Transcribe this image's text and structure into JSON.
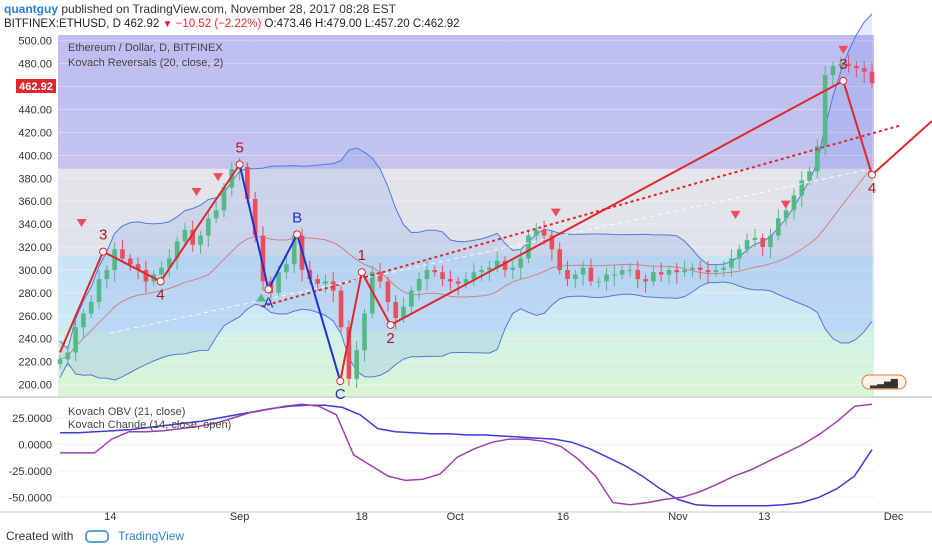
{
  "header": {
    "author": "quantguy",
    "published": "published on TradingView.com, November 28, 2017 08:28 EST",
    "symbol": "BITFINEX:ETHUSD, D",
    "price": "462.92",
    "change": "−10.52 (−2.22%)",
    "ohlc": "O:473.46 H:479.00 L:457.20 C:462.92"
  },
  "legend": {
    "main": "Ethereum / Dollar, D, BITFINEX",
    "ind1": "Kovach Reversals (20, close, 2)",
    "ind2": "Kovach OBV (21, close)",
    "ind3": "Kovach Chande (14, close, open)"
  },
  "colors": {
    "up": "#53b987",
    "down": "#eb4d5c",
    "wave_red": "#e0262b",
    "wave_blue": "#2030d0",
    "band": "#5577dd",
    "obv": "#3b3bd6",
    "chande": "#a03dac"
  },
  "price_axis": {
    "ticks": [
      "500.00",
      "480.00",
      "460.00",
      "440.00",
      "420.00",
      "400.00",
      "380.00",
      "360.00",
      "340.00",
      "320.00",
      "300.00",
      "280.00",
      "260.00",
      "240.00",
      "220.00",
      "200.00"
    ],
    "current": "462.92",
    "ylim": [
      190,
      505
    ]
  },
  "osc_axis": {
    "ticks": [
      "25.0000",
      "0.0000",
      "-25.0000",
      "-50.0000"
    ],
    "ylim": [
      -62,
      42
    ]
  },
  "time_axis": {
    "ticks": [
      "14",
      "Sep",
      "18",
      "Oct",
      "16",
      "Nov",
      "13",
      "Dec"
    ]
  },
  "wave_labels": {
    "red": [
      "3",
      "4",
      "5",
      "1",
      "2",
      "3",
      "4"
    ],
    "blue": [
      "A",
      "B",
      "C"
    ]
  },
  "footer": {
    "created": "Created with",
    "brand": "TradingView"
  },
  "chart_data": {
    "type": "candlestick",
    "x_start": "2017-08-07",
    "x_end": "2017-11-28",
    "close": [
      222,
      228,
      250,
      262,
      272,
      292,
      300,
      318,
      310,
      305,
      300,
      290,
      296,
      302,
      310,
      325,
      335,
      322,
      330,
      345,
      352,
      372,
      388,
      390,
      362,
      330,
      290,
      280,
      298,
      305,
      330,
      300,
      292,
      288,
      290,
      282,
      250,
      205,
      230,
      262,
      298,
      290,
      272,
      258,
      268,
      282,
      292,
      300,
      298,
      292,
      290,
      288,
      292,
      298,
      300,
      302,
      308,
      300,
      302,
      310,
      330,
      335,
      330,
      318,
      300,
      292,
      296,
      302,
      290,
      290,
      296,
      296,
      300,
      300,
      292,
      290,
      298,
      296,
      300,
      298,
      300,
      302,
      300,
      298,
      300,
      302,
      310,
      318,
      326,
      328,
      320,
      330,
      345,
      352,
      365,
      378,
      386,
      408,
      470,
      478,
      480,
      478,
      476,
      473,
      463
    ],
    "wave_points": [
      {
        "label": "3",
        "date": "2017-08-13",
        "value": 316
      },
      {
        "label": "4",
        "date": "2017-08-21",
        "value": 290
      },
      {
        "label": "5",
        "date": "2017-09-01",
        "value": 392
      },
      {
        "label": "A",
        "date": "2017-09-05",
        "value": 283
      },
      {
        "label": "B",
        "date": "2017-09-09",
        "value": 331
      },
      {
        "label": "C",
        "date": "2017-09-15",
        "value": 203
      },
      {
        "label": "1",
        "date": "2017-09-18",
        "value": 298
      },
      {
        "label": "2",
        "date": "2017-09-22",
        "value": 252
      },
      {
        "label": "3",
        "date": "2017-11-24",
        "value": 465
      },
      {
        "label": "4",
        "date": "2017-11-28",
        "value": 383
      }
    ]
  }
}
